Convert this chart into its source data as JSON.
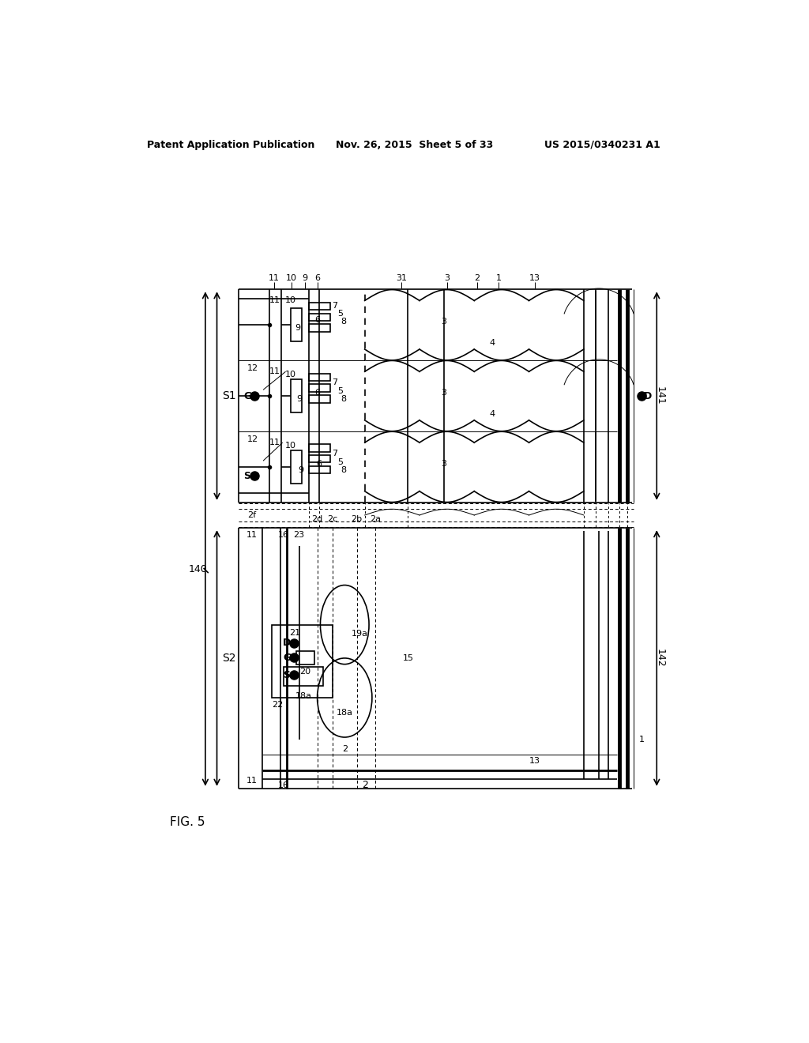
{
  "title_left": "Patent Application Publication",
  "title_mid": "Nov. 26, 2015  Sheet 5 of 33",
  "title_right": "US 2015/0340231 A1",
  "fig_label": "FIG. 5",
  "bg_color": "#ffffff",
  "line_color": "#000000"
}
